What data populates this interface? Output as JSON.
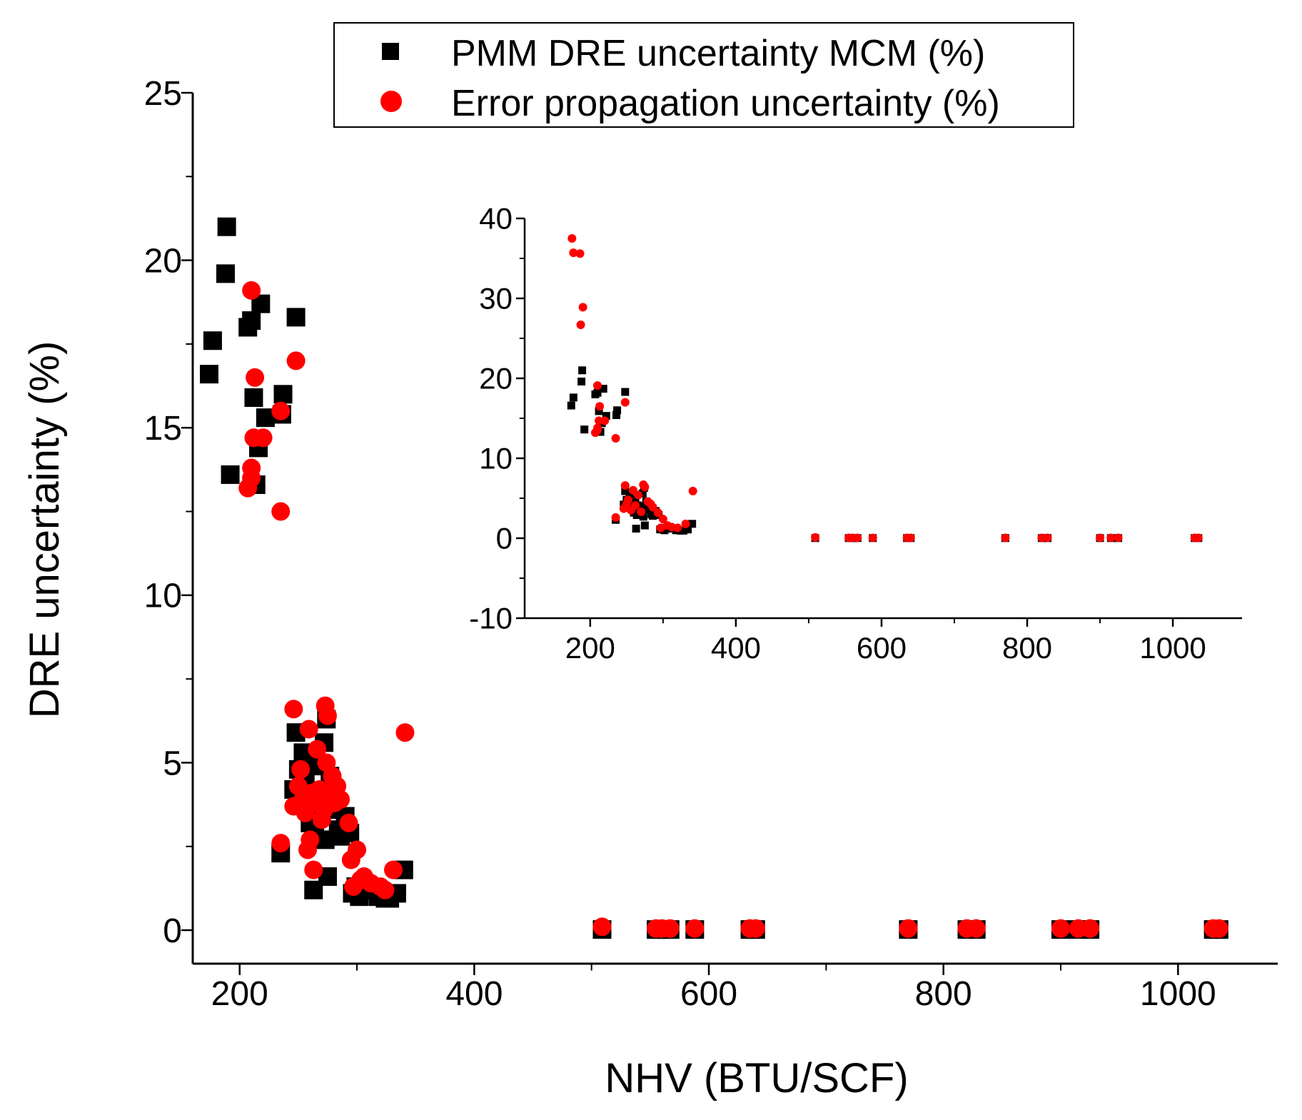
{
  "chart_data": [
    {
      "name": "main",
      "type": "scatter",
      "title": "",
      "xlabel": "NHV (BTU/SCF)",
      "ylabel": "DRE uncertainty (%)",
      "xlim": [
        160,
        1085
      ],
      "ylim": [
        -1,
        25
      ],
      "xticks": [
        200,
        400,
        600,
        800,
        1000
      ],
      "yticks": [
        0,
        5,
        10,
        15,
        20,
        25
      ],
      "xtick_labels": [
        "200",
        "400",
        "600",
        "800",
        "1000"
      ],
      "ytick_labels": [
        "0",
        "5",
        "10",
        "15",
        "20",
        "25"
      ],
      "legend": {
        "placement": "top",
        "entries": [
          "PMM DRE uncertainty MCM  (%)",
          "Error propagation uncertainty (%)"
        ]
      },
      "series": [
        {
          "name": "PMM DRE uncertainty MCM  (%)",
          "marker": "square",
          "color": "#000000",
          "points": [
            [
              174,
              16.6
            ],
            [
              177,
              17.6
            ],
            [
              188,
              19.6
            ],
            [
              189,
              21.0
            ],
            [
              192,
              13.6
            ],
            [
              207,
              18.0
            ],
            [
              210,
              18.2
            ],
            [
              212,
              15.9
            ],
            [
              214,
              13.3
            ],
            [
              216,
              14.4
            ],
            [
              218,
              18.7
            ],
            [
              222,
              15.3
            ],
            [
              236,
              15.4
            ],
            [
              237,
              16.0
            ],
            [
              248,
              18.3
            ],
            [
              235,
              2.3
            ],
            [
              246,
              4.2
            ],
            [
              248,
              5.9
            ],
            [
              250,
              4.8
            ],
            [
              252,
              3.8
            ],
            [
              254,
              5.3
            ],
            [
              256,
              4.5
            ],
            [
              258,
              3.6
            ],
            [
              260,
              3.2
            ],
            [
              262,
              4.9
            ],
            [
              263,
              1.2
            ],
            [
              264,
              2.9
            ],
            [
              266,
              4.1
            ],
            [
              268,
              3.9
            ],
            [
              270,
              3.5
            ],
            [
              272,
              5.6
            ],
            [
              273,
              2.7
            ],
            [
              274,
              6.3
            ],
            [
              275,
              1.6
            ],
            [
              277,
              4.6
            ],
            [
              279,
              4.0
            ],
            [
              281,
              3.6
            ],
            [
              284,
              3.0
            ],
            [
              286,
              2.8
            ],
            [
              290,
              3.4
            ],
            [
              294,
              2.9
            ],
            [
              296,
              1.1
            ],
            [
              299,
              1.3
            ],
            [
              302,
              1.0
            ],
            [
              306,
              1.4
            ],
            [
              312,
              1.2
            ],
            [
              318,
              1.0
            ],
            [
              324,
              0.95
            ],
            [
              328,
              0.95
            ],
            [
              334,
              1.1
            ],
            [
              340,
              1.8
            ],
            [
              509,
              0.02
            ],
            [
              555,
              0.02
            ],
            [
              560,
              0.02
            ],
            [
              567,
              0.02
            ],
            [
              588,
              0.02
            ],
            [
              635,
              0.02
            ],
            [
              640,
              0.02
            ],
            [
              770,
              0.02
            ],
            [
              820,
              0.02
            ],
            [
              828,
              0.02
            ],
            [
              900,
              0.02
            ],
            [
              915,
              0.02
            ],
            [
              925,
              0.02
            ],
            [
              1030,
              0.02
            ],
            [
              1035,
              0.02
            ]
          ]
        },
        {
          "name": "Error propagation uncertainty (%)",
          "marker": "circle",
          "color": "#ff0000",
          "points": [
            [
              210,
              19.1
            ],
            [
              213,
              16.5
            ],
            [
              212,
              14.7
            ],
            [
              220,
              14.7
            ],
            [
              210,
              13.8
            ],
            [
              210,
              13.5
            ],
            [
              207,
              13.2
            ],
            [
              235,
              15.5
            ],
            [
              235,
              12.5
            ],
            [
              248,
              17.0
            ],
            [
              235,
              2.6
            ],
            [
              246,
              3.7
            ],
            [
              246,
              6.6
            ],
            [
              250,
              4.3
            ],
            [
              252,
              4.8
            ],
            [
              254,
              3.9
            ],
            [
              256,
              3.5
            ],
            [
              258,
              2.4
            ],
            [
              259,
              6.0
            ],
            [
              260,
              2.7
            ],
            [
              262,
              4.1
            ],
            [
              263,
              1.8
            ],
            [
              265,
              3.8
            ],
            [
              266,
              5.4
            ],
            [
              268,
              4.2
            ],
            [
              270,
              3.3
            ],
            [
              272,
              3.6
            ],
            [
              273,
              6.7
            ],
            [
              274,
              5.0
            ],
            [
              275,
              6.4
            ],
            [
              277,
              4.1
            ],
            [
              279,
              4.6
            ],
            [
              281,
              3.8
            ],
            [
              283,
              4.3
            ],
            [
              286,
              3.9
            ],
            [
              293,
              3.2
            ],
            [
              295,
              2.1
            ],
            [
              297,
              1.3
            ],
            [
              300,
              2.4
            ],
            [
              303,
              1.5
            ],
            [
              306,
              1.6
            ],
            [
              312,
              1.4
            ],
            [
              320,
              1.3
            ],
            [
              324,
              1.2
            ],
            [
              331,
              1.8
            ],
            [
              341,
              5.9
            ],
            [
              509,
              0.1
            ],
            [
              555,
              0.05
            ],
            [
              560,
              0.05
            ],
            [
              567,
              0.05
            ],
            [
              588,
              0.05
            ],
            [
              635,
              0.05
            ],
            [
              640,
              0.05
            ],
            [
              770,
              0.05
            ],
            [
              820,
              0.05
            ],
            [
              828,
              0.05
            ],
            [
              900,
              0.05
            ],
            [
              915,
              0.05
            ],
            [
              925,
              0.05
            ],
            [
              1030,
              0.05
            ],
            [
              1035,
              0.05
            ]
          ]
        }
      ]
    },
    {
      "name": "inset",
      "type": "scatter",
      "title": "",
      "xlabel": "",
      "ylabel": "",
      "xlim": [
        110,
        1095
      ],
      "ylim": [
        -10,
        40
      ],
      "xticks": [
        200,
        400,
        600,
        800,
        1000
      ],
      "yticks": [
        -10,
        0,
        10,
        20,
        30,
        40
      ],
      "xtick_labels": [
        "200",
        "400",
        "600",
        "800",
        "1000"
      ],
      "ytick_labels": [
        "-10",
        "0",
        "10",
        "20",
        "30",
        "40"
      ],
      "series": [
        {
          "name": "PMM DRE uncertainty MCM  (%)",
          "marker": "square",
          "color": "#000000",
          "points": [
            [
              174,
              16.6
            ],
            [
              177,
              17.6
            ],
            [
              188,
              19.6
            ],
            [
              189,
              21.0
            ],
            [
              192,
              13.6
            ],
            [
              207,
              18.0
            ],
            [
              210,
              18.2
            ],
            [
              212,
              15.9
            ],
            [
              214,
              13.3
            ],
            [
              216,
              14.4
            ],
            [
              218,
              18.7
            ],
            [
              222,
              15.3
            ],
            [
              236,
              15.4
            ],
            [
              237,
              16.0
            ],
            [
              248,
              18.3
            ],
            [
              235,
              2.3
            ],
            [
              246,
              4.2
            ],
            [
              248,
              5.9
            ],
            [
              250,
              4.8
            ],
            [
              252,
              3.8
            ],
            [
              254,
              5.3
            ],
            [
              256,
              4.5
            ],
            [
              258,
              3.6
            ],
            [
              260,
              3.2
            ],
            [
              262,
              4.9
            ],
            [
              263,
              1.2
            ],
            [
              264,
              2.9
            ],
            [
              266,
              4.1
            ],
            [
              268,
              3.9
            ],
            [
              270,
              3.5
            ],
            [
              272,
              5.6
            ],
            [
              273,
              2.7
            ],
            [
              274,
              6.3
            ],
            [
              275,
              1.6
            ],
            [
              277,
              4.6
            ],
            [
              279,
              4.0
            ],
            [
              281,
              3.6
            ],
            [
              284,
              3.0
            ],
            [
              286,
              2.8
            ],
            [
              290,
              3.4
            ],
            [
              294,
              2.9
            ],
            [
              296,
              1.1
            ],
            [
              299,
              1.3
            ],
            [
              302,
              1.0
            ],
            [
              306,
              1.4
            ],
            [
              312,
              1.2
            ],
            [
              318,
              1.0
            ],
            [
              324,
              0.95
            ],
            [
              328,
              0.95
            ],
            [
              334,
              1.1
            ],
            [
              340,
              1.8
            ],
            [
              509,
              0.02
            ],
            [
              555,
              0.02
            ],
            [
              560,
              0.02
            ],
            [
              567,
              0.02
            ],
            [
              588,
              0.02
            ],
            [
              635,
              0.02
            ],
            [
              640,
              0.02
            ],
            [
              770,
              0.02
            ],
            [
              820,
              0.02
            ],
            [
              828,
              0.02
            ],
            [
              900,
              0.02
            ],
            [
              915,
              0.02
            ],
            [
              925,
              0.02
            ],
            [
              1030,
              0.02
            ],
            [
              1035,
              0.02
            ]
          ]
        },
        {
          "name": "Error propagation uncertainty (%)",
          "marker": "circle",
          "color": "#ff0000",
          "points": [
            [
              175,
              37.5
            ],
            [
              177,
              35.7
            ],
            [
              186,
              35.6
            ],
            [
              187,
              26.7
            ],
            [
              190,
              28.9
            ],
            [
              210,
              19.1
            ],
            [
              213,
              16.5
            ],
            [
              212,
              14.7
            ],
            [
              220,
              14.7
            ],
            [
              210,
              13.8
            ],
            [
              210,
              13.5
            ],
            [
              207,
              13.2
            ],
            [
              235,
              12.5
            ],
            [
              248,
              17.0
            ],
            [
              235,
              2.6
            ],
            [
              246,
              3.7
            ],
            [
              248,
              6.6
            ],
            [
              250,
              4.3
            ],
            [
              252,
              4.8
            ],
            [
              256,
              3.5
            ],
            [
              259,
              6.0
            ],
            [
              262,
              4.1
            ],
            [
              266,
              5.4
            ],
            [
              270,
              3.3
            ],
            [
              273,
              6.7
            ],
            [
              275,
              6.4
            ],
            [
              279,
              4.6
            ],
            [
              283,
              4.3
            ],
            [
              286,
              3.9
            ],
            [
              293,
              3.2
            ],
            [
              297,
              1.3
            ],
            [
              300,
              2.4
            ],
            [
              306,
              1.6
            ],
            [
              312,
              1.4
            ],
            [
              320,
              1.3
            ],
            [
              331,
              1.8
            ],
            [
              341,
              5.9
            ],
            [
              509,
              0.1
            ],
            [
              555,
              0.05
            ],
            [
              560,
              0.05
            ],
            [
              567,
              0.05
            ],
            [
              588,
              0.05
            ],
            [
              635,
              0.05
            ],
            [
              640,
              0.05
            ],
            [
              770,
              0.05
            ],
            [
              820,
              0.05
            ],
            [
              828,
              0.05
            ],
            [
              900,
              0.05
            ],
            [
              915,
              0.05
            ],
            [
              925,
              0.05
            ],
            [
              1030,
              0.05
            ],
            [
              1035,
              0.05
            ]
          ]
        }
      ]
    }
  ]
}
